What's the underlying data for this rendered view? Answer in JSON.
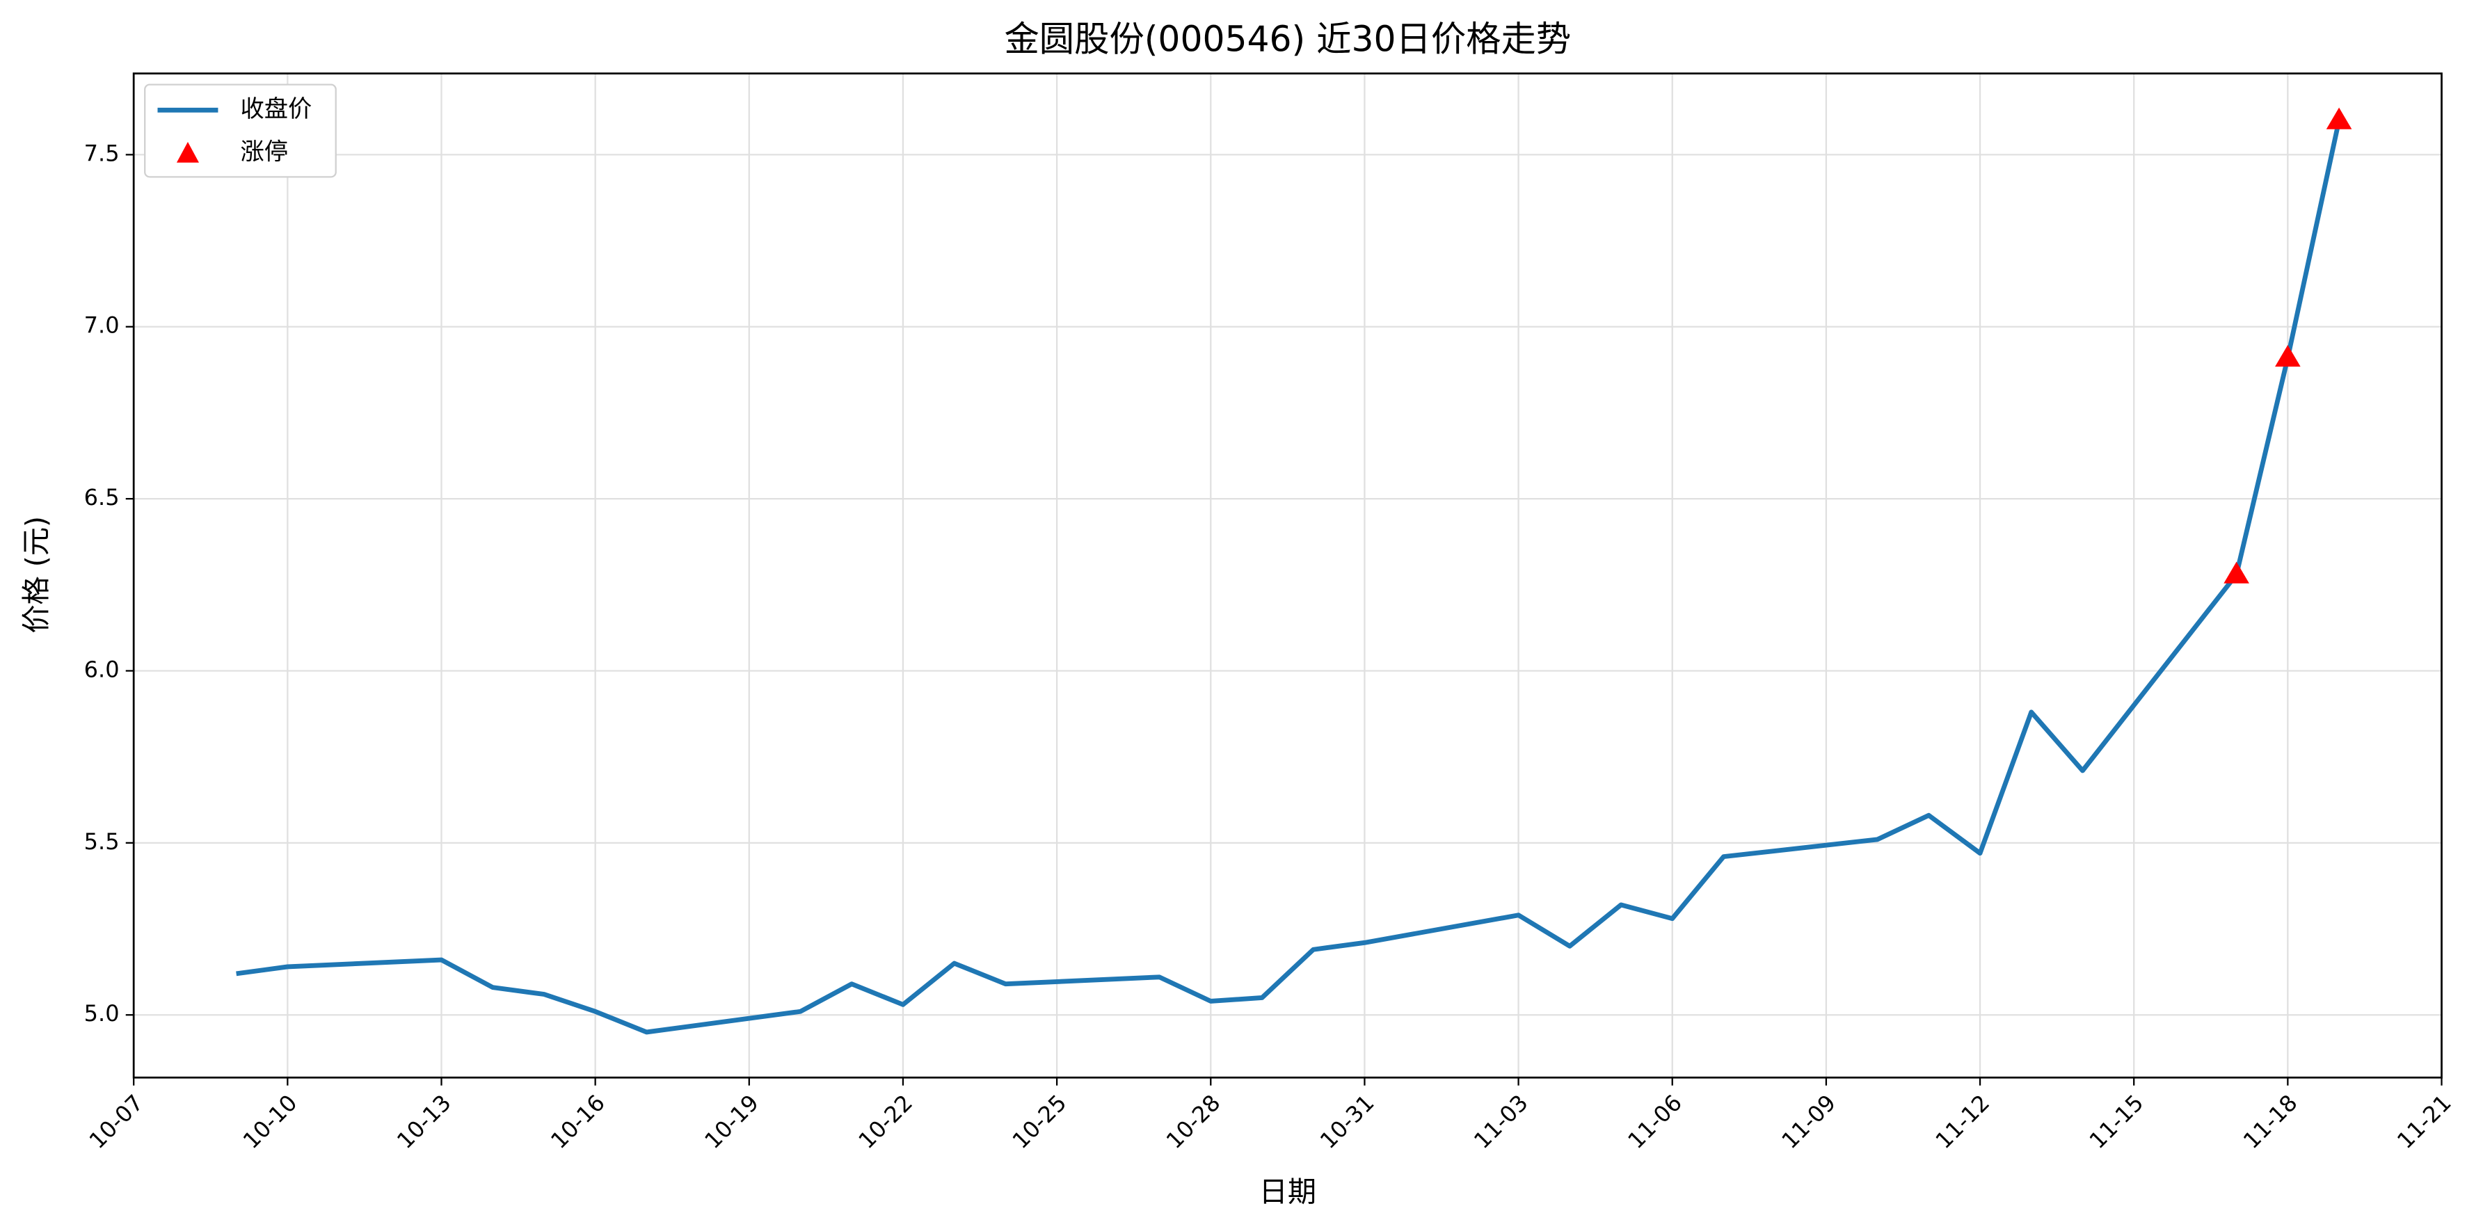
{
  "chart_data": {
    "type": "line",
    "title": "金圆股份(000546) 近30日价格走势",
    "xlabel": "日期",
    "ylabel": "价格 (元)",
    "x": [
      "10-09",
      "10-10",
      "10-13",
      "10-14",
      "10-15",
      "10-16",
      "10-17",
      "10-20",
      "10-21",
      "10-22",
      "10-23",
      "10-24",
      "10-27",
      "10-28",
      "10-29",
      "10-30",
      "10-31",
      "11-03",
      "11-04",
      "11-05",
      "11-06",
      "11-07",
      "11-10",
      "11-11",
      "11-12",
      "11-13",
      "11-14",
      "11-17",
      "11-18",
      "11-19"
    ],
    "series": [
      {
        "name": "收盘价",
        "type": "line",
        "color": "#1f77b4",
        "values": [
          5.12,
          5.14,
          5.16,
          5.08,
          5.06,
          5.01,
          4.95,
          5.01,
          5.09,
          5.03,
          5.15,
          5.09,
          5.11,
          5.04,
          5.05,
          5.19,
          5.21,
          5.29,
          5.2,
          5.32,
          5.28,
          5.46,
          5.51,
          5.58,
          5.47,
          5.88,
          5.71,
          6.28,
          6.91,
          7.6
        ]
      },
      {
        "name": "涨停",
        "type": "scatter",
        "marker": "triangle",
        "color": "#ff0000",
        "x": [
          "11-17",
          "11-18",
          "11-19"
        ],
        "values": [
          6.28,
          6.91,
          7.6
        ]
      }
    ],
    "xlim": [
      "10-07",
      "11-21"
    ],
    "xticks": [
      "10-07",
      "10-10",
      "10-13",
      "10-16",
      "10-19",
      "10-22",
      "10-25",
      "10-28",
      "10-31",
      "11-03",
      "11-06",
      "11-09",
      "11-12",
      "11-15",
      "11-18",
      "11-21"
    ],
    "ylim": [
      4.818,
      7.736
    ],
    "yticks": [
      {
        "value": 5,
        "label": "5.0"
      },
      5.5,
      {
        "value": 6,
        "label": "6.0"
      },
      6.5,
      {
        "value": 7,
        "label": "7.0"
      },
      7.5
    ],
    "grid": true,
    "legend": "upper left"
  }
}
